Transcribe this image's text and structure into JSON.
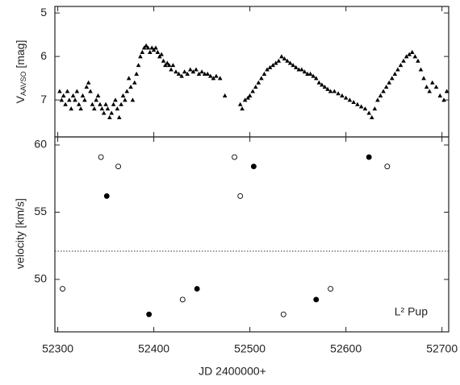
{
  "chart_data": [
    {
      "type": "scatter",
      "marker": "triangle",
      "color": "#000000",
      "ylabel": {
        "main": "V",
        "sub": "AAVSO",
        "rest": "[mag]"
      },
      "xlim": [
        52297,
        52707
      ],
      "xticks": [
        52300,
        52400,
        52500,
        52600,
        52700
      ],
      "show_xtick_labels": false,
      "ylim": [
        4.85,
        7.85
      ],
      "yticks": [
        5,
        6,
        7
      ],
      "y_inverted": true,
      "x": [
        52302,
        52304,
        52306,
        52308,
        52310,
        52312,
        52314,
        52316,
        52318,
        52320,
        52322,
        52324,
        52326,
        52328,
        52330,
        52332,
        52334,
        52336,
        52338,
        52340,
        52342,
        52344,
        52346,
        52348,
        52350,
        52352,
        52354,
        52356,
        52358,
        52360,
        52362,
        52364,
        52366,
        52368,
        52370,
        52372,
        52374,
        52376,
        52378,
        52380,
        52382,
        52384,
        52386,
        52388,
        52390,
        52392,
        52394,
        52396,
        52398,
        52400,
        52402,
        52404,
        52406,
        52408,
        52410,
        52412,
        52414,
        52416,
        52418,
        52420,
        52423,
        52426,
        52429,
        52432,
        52435,
        52438,
        52441,
        52444,
        52447,
        52450,
        52453,
        52456,
        52459,
        52462,
        52465,
        52469,
        52474,
        52490,
        52492,
        52495,
        52498,
        52500,
        52503,
        52506,
        52509,
        52512,
        52515,
        52518,
        52521,
        52524,
        52527,
        52530,
        52533,
        52536,
        52539,
        52542,
        52545,
        52548,
        52551,
        52554,
        52557,
        52560,
        52563,
        52566,
        52569,
        52572,
        52575,
        52578,
        52581,
        52584,
        52588,
        52592,
        52596,
        52600,
        52604,
        52608,
        52612,
        52616,
        52620,
        52624,
        52627,
        52630,
        52633,
        52636,
        52639,
        52642,
        52645,
        52648,
        52651,
        52654,
        52657,
        52660,
        52663,
        52666,
        52669,
        52672,
        52675,
        52678,
        52681,
        52684,
        52687,
        52690,
        52694,
        52698,
        52702,
        52705
      ],
      "values": [
        6.8,
        7.0,
        6.9,
        7.1,
        6.8,
        7.0,
        7.2,
        6.9,
        7.0,
        6.8,
        7.1,
        7.2,
        6.9,
        7.0,
        6.7,
        6.6,
        6.8,
        7.1,
        7.2,
        7.0,
        6.9,
        7.1,
        7.2,
        7.3,
        7.1,
        7.2,
        7.4,
        7.3,
        7.1,
        7.0,
        7.2,
        7.4,
        7.1,
        6.9,
        7.0,
        6.8,
        6.5,
        6.7,
        7.0,
        6.6,
        6.4,
        6.2,
        6.0,
        5.9,
        5.8,
        5.75,
        5.8,
        5.9,
        5.8,
        5.85,
        5.8,
        5.9,
        6.0,
        5.95,
        6.1,
        6.2,
        6.15,
        6.2,
        6.3,
        6.2,
        6.35,
        6.4,
        6.45,
        6.35,
        6.4,
        6.3,
        6.35,
        6.3,
        6.4,
        6.35,
        6.4,
        6.4,
        6.45,
        6.5,
        6.45,
        6.5,
        6.9,
        7.1,
        7.2,
        7.0,
        6.95,
        6.9,
        6.8,
        6.7,
        6.6,
        6.5,
        6.4,
        6.3,
        6.25,
        6.2,
        6.15,
        6.1,
        6.0,
        6.05,
        6.1,
        6.15,
        6.2,
        6.25,
        6.3,
        6.3,
        6.35,
        6.4,
        6.4,
        6.45,
        6.5,
        6.6,
        6.65,
        6.7,
        6.75,
        6.8,
        6.8,
        6.85,
        6.9,
        6.95,
        7.0,
        7.05,
        7.1,
        7.15,
        7.2,
        7.3,
        7.4,
        7.2,
        7.0,
        6.9,
        6.8,
        6.7,
        6.6,
        6.5,
        6.4,
        6.3,
        6.2,
        6.1,
        6.0,
        5.95,
        5.9,
        6.0,
        6.1,
        6.3,
        6.5,
        6.7,
        6.8,
        6.6,
        6.7,
        6.9,
        7.0,
        6.8
      ]
    },
    {
      "type": "scatter",
      "xlabel": "JD 2400000+",
      "ylabel": "velocity [km/s]",
      "annotation": "L² Pup",
      "xlim": [
        52297,
        52707
      ],
      "xticks": [
        52300,
        52400,
        52500,
        52600,
        52700
      ],
      "show_xtick_labels": true,
      "ylim": [
        46.1,
        60.6
      ],
      "yticks": [
        50,
        55,
        60
      ],
      "reference_line": 52.1,
      "series": [
        {
          "marker": "filled",
          "color": "#000000",
          "x": [
            52351,
            52395,
            52445,
            52504,
            52569,
            52624
          ],
          "values": [
            56.2,
            47.4,
            49.3,
            58.4,
            48.5,
            59.1
          ]
        },
        {
          "marker": "open",
          "color": "#000000",
          "x": [
            52305,
            52345,
            52363,
            52430,
            52484,
            52490,
            52535,
            52584,
            52643
          ],
          "values": [
            49.3,
            59.1,
            58.4,
            48.5,
            59.1,
            56.2,
            47.4,
            49.3,
            58.4
          ]
        }
      ]
    }
  ]
}
